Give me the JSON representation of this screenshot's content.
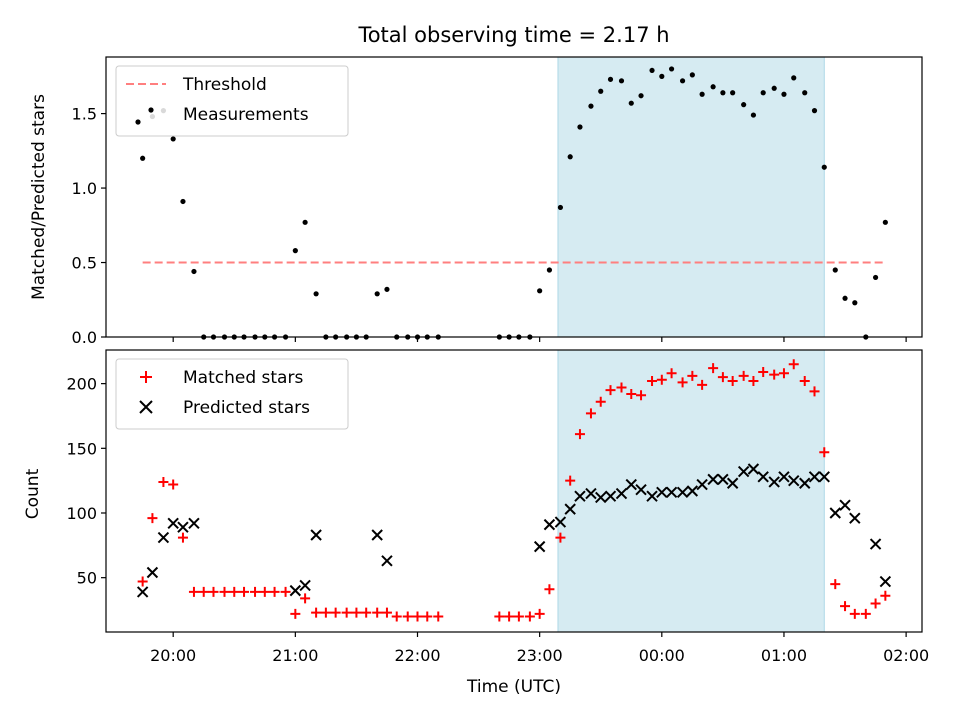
{
  "chart_data": [
    {
      "type": "scatter",
      "title": "Total observing time = 2.17 h",
      "ylabel": "Matched/Predicted stars",
      "xlabel": "",
      "ylim": [
        0,
        1.88
      ],
      "yticks": [
        "0.0",
        "0.5",
        "1.0",
        "1.5"
      ],
      "legend_position": "top-left",
      "highlight_span": {
        "x_start": 23.15,
        "x_end": 25.33
      },
      "threshold": {
        "name": "Threshold",
        "value": 0.5,
        "x_start": 19.75,
        "x_end": 25.83,
        "style": "dashed",
        "color": "#ff7f7f"
      },
      "series": [
        {
          "name": "Measurements",
          "color": "#000000",
          "marker": "dot",
          "points": [
            [
              19.75,
              1.2
            ],
            [
              19.83,
              1.48
            ],
            [
              19.92,
              1.52
            ],
            [
              20.0,
              1.33
            ],
            [
              20.08,
              0.91
            ],
            [
              20.17,
              0.44
            ],
            [
              20.25,
              0.0
            ],
            [
              20.33,
              0.0
            ],
            [
              20.42,
              0.0
            ],
            [
              20.5,
              0.0
            ],
            [
              20.58,
              0.0
            ],
            [
              20.67,
              0.0
            ],
            [
              20.75,
              0.0
            ],
            [
              20.83,
              0.0
            ],
            [
              20.92,
              0.0
            ],
            [
              21.0,
              0.58
            ],
            [
              21.08,
              0.77
            ],
            [
              21.17,
              0.29
            ],
            [
              21.25,
              0.0
            ],
            [
              21.33,
              0.0
            ],
            [
              21.42,
              0.0
            ],
            [
              21.5,
              0.0
            ],
            [
              21.58,
              0.0
            ],
            [
              21.67,
              0.29
            ],
            [
              21.75,
              0.32
            ],
            [
              21.83,
              0.0
            ],
            [
              21.92,
              0.0
            ],
            [
              22.0,
              0.0
            ],
            [
              22.08,
              0.0
            ],
            [
              22.17,
              0.0
            ],
            [
              22.67,
              0.0
            ],
            [
              22.75,
              0.0
            ],
            [
              22.83,
              0.0
            ],
            [
              22.92,
              0.0
            ],
            [
              23.0,
              0.31
            ],
            [
              23.08,
              0.45
            ],
            [
              23.17,
              0.87
            ],
            [
              23.25,
              1.21
            ],
            [
              23.33,
              1.41
            ],
            [
              23.42,
              1.55
            ],
            [
              23.5,
              1.65
            ],
            [
              23.58,
              1.73
            ],
            [
              23.67,
              1.72
            ],
            [
              23.75,
              1.57
            ],
            [
              23.83,
              1.62
            ],
            [
              23.92,
              1.79
            ],
            [
              24.0,
              1.75
            ],
            [
              24.08,
              1.8
            ],
            [
              24.17,
              1.72
            ],
            [
              24.25,
              1.76
            ],
            [
              24.33,
              1.63
            ],
            [
              24.42,
              1.68
            ],
            [
              24.5,
              1.64
            ],
            [
              24.58,
              1.64
            ],
            [
              24.67,
              1.56
            ],
            [
              24.75,
              1.49
            ],
            [
              24.83,
              1.64
            ],
            [
              24.92,
              1.67
            ],
            [
              25.0,
              1.63
            ],
            [
              25.08,
              1.74
            ],
            [
              25.17,
              1.64
            ],
            [
              25.25,
              1.52
            ],
            [
              25.33,
              1.14
            ],
            [
              25.42,
              0.45
            ],
            [
              25.5,
              0.26
            ],
            [
              25.58,
              0.23
            ],
            [
              25.67,
              0.0
            ],
            [
              25.75,
              0.4
            ],
            [
              25.83,
              0.77
            ]
          ]
        }
      ]
    },
    {
      "type": "scatter",
      "title": "",
      "xlabel": "Time (UTC)",
      "ylabel": "Count",
      "ylim": [
        8,
        226
      ],
      "xlim": [
        19.45,
        26.13
      ],
      "yticks": [
        "50",
        "100",
        "150",
        "200"
      ],
      "xticks": [
        {
          "value": 20,
          "label": "20:00"
        },
        {
          "value": 21,
          "label": "21:00"
        },
        {
          "value": 22,
          "label": "22:00"
        },
        {
          "value": 23,
          "label": "23:00"
        },
        {
          "value": 24,
          "label": "00:00"
        },
        {
          "value": 25,
          "label": "01:00"
        },
        {
          "value": 26,
          "label": "02:00"
        }
      ],
      "legend_position": "top-left",
      "highlight_span": {
        "x_start": 23.15,
        "x_end": 25.33
      },
      "series": [
        {
          "name": "Matched stars",
          "color": "#ff0000",
          "marker": "plus",
          "points": [
            [
              19.75,
              47
            ],
            [
              19.83,
              96
            ],
            [
              19.92,
              124
            ],
            [
              20.0,
              122
            ],
            [
              20.08,
              81
            ],
            [
              20.17,
              39
            ],
            [
              20.25,
              39
            ],
            [
              20.33,
              39
            ],
            [
              20.42,
              39
            ],
            [
              20.5,
              39
            ],
            [
              20.58,
              39
            ],
            [
              20.67,
              39
            ],
            [
              20.75,
              39
            ],
            [
              20.83,
              39
            ],
            [
              20.92,
              39
            ],
            [
              21.0,
              22
            ],
            [
              21.08,
              34
            ],
            [
              21.17,
              23
            ],
            [
              21.25,
              23
            ],
            [
              21.33,
              23
            ],
            [
              21.42,
              23
            ],
            [
              21.5,
              23
            ],
            [
              21.58,
              23
            ],
            [
              21.67,
              23
            ],
            [
              21.75,
              23
            ],
            [
              21.83,
              20
            ],
            [
              21.92,
              20
            ],
            [
              22.0,
              20
            ],
            [
              22.08,
              20
            ],
            [
              22.17,
              20
            ],
            [
              22.67,
              20
            ],
            [
              22.75,
              20
            ],
            [
              22.83,
              20
            ],
            [
              22.92,
              20
            ],
            [
              23.0,
              22
            ],
            [
              23.08,
              41
            ],
            [
              23.17,
              81
            ],
            [
              23.25,
              125
            ],
            [
              23.33,
              161
            ],
            [
              23.42,
              177
            ],
            [
              23.5,
              186
            ],
            [
              23.58,
              195
            ],
            [
              23.67,
              197
            ],
            [
              23.75,
              192
            ],
            [
              23.83,
              191
            ],
            [
              23.92,
              202
            ],
            [
              24.0,
              203
            ],
            [
              24.08,
              208
            ],
            [
              24.17,
              201
            ],
            [
              24.25,
              206
            ],
            [
              24.33,
              199
            ],
            [
              24.42,
              212
            ],
            [
              24.5,
              205
            ],
            [
              24.58,
              202
            ],
            [
              24.67,
              206
            ],
            [
              24.75,
              202
            ],
            [
              24.83,
              209
            ],
            [
              24.92,
              207
            ],
            [
              25.0,
              208
            ],
            [
              25.08,
              215
            ],
            [
              25.17,
              202
            ],
            [
              25.25,
              194
            ],
            [
              25.33,
              147
            ],
            [
              25.42,
              45
            ],
            [
              25.5,
              28
            ],
            [
              25.58,
              22
            ],
            [
              25.67,
              22
            ],
            [
              25.75,
              30
            ],
            [
              25.83,
              36
            ]
          ]
        },
        {
          "name": "Predicted stars",
          "color": "#000000",
          "marker": "x",
          "points": [
            [
              19.75,
              39
            ],
            [
              19.83,
              54
            ],
            [
              19.92,
              81
            ],
            [
              20.0,
              92
            ],
            [
              20.08,
              89
            ],
            [
              20.17,
              92
            ],
            [
              21.0,
              40
            ],
            [
              21.08,
              44
            ],
            [
              21.17,
              83
            ],
            [
              21.67,
              83
            ],
            [
              21.75,
              63
            ],
            [
              23.0,
              74
            ],
            [
              23.08,
              91
            ],
            [
              23.17,
              93
            ],
            [
              23.25,
              103
            ],
            [
              23.33,
              113
            ],
            [
              23.42,
              115
            ],
            [
              23.5,
              112
            ],
            [
              23.58,
              113
            ],
            [
              23.67,
              115
            ],
            [
              23.75,
              122
            ],
            [
              23.83,
              118
            ],
            [
              23.92,
              113
            ],
            [
              24.0,
              116
            ],
            [
              24.08,
              116
            ],
            [
              24.17,
              116
            ],
            [
              24.25,
              117
            ],
            [
              24.33,
              122
            ],
            [
              24.42,
              126
            ],
            [
              24.5,
              126
            ],
            [
              24.58,
              123
            ],
            [
              24.67,
              132
            ],
            [
              24.75,
              134
            ],
            [
              24.83,
              128
            ],
            [
              24.92,
              124
            ],
            [
              25.0,
              128
            ],
            [
              25.08,
              125
            ],
            [
              25.17,
              123
            ],
            [
              25.25,
              128
            ],
            [
              25.33,
              128
            ],
            [
              25.42,
              100
            ],
            [
              25.5,
              106
            ],
            [
              25.58,
              96
            ],
            [
              25.75,
              76
            ],
            [
              25.83,
              47
            ]
          ]
        }
      ]
    }
  ]
}
